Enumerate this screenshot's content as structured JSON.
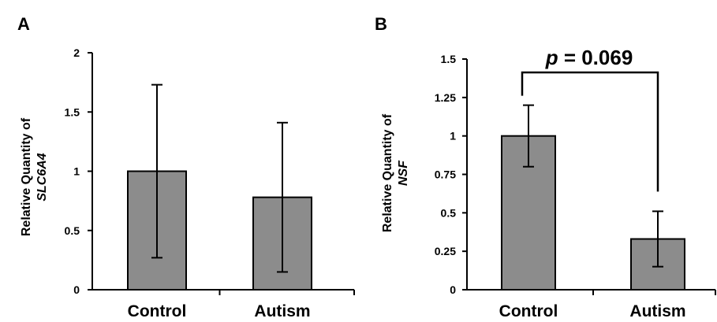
{
  "chart_data": [
    {
      "type": "bar",
      "panel_label": "A",
      "categories": [
        "Control",
        "Autism"
      ],
      "values": [
        1.0,
        0.78
      ],
      "errors": [
        0.73,
        0.63
      ],
      "ylabel_line1": "Relative Quantity of",
      "ylabel_line2": "SLC6A4",
      "ylim": [
        0,
        2
      ],
      "yticks": [
        0,
        0.5,
        1,
        1.5,
        2
      ],
      "ytick_labels": [
        "0",
        "0.5",
        "1",
        "1.5",
        "2"
      ],
      "bar_color": "#8c8c8c",
      "grid": false
    },
    {
      "type": "bar",
      "panel_label": "B",
      "categories": [
        "Control",
        "Autism"
      ],
      "values": [
        1.0,
        0.33
      ],
      "errors": [
        0.2,
        0.18
      ],
      "ylabel_line1": "Relative Quantity of",
      "ylabel_line2": "NSF",
      "ylim": [
        0,
        1.5
      ],
      "yticks": [
        0,
        0.25,
        0.5,
        0.75,
        1,
        1.25,
        1.5
      ],
      "ytick_labels": [
        "0",
        "0.25",
        "0.5",
        "0.75",
        "1",
        "1.25",
        "1.5"
      ],
      "annotation_p_label": "p",
      "annotation_value": " = 0.069",
      "bar_color": "#8c8c8c",
      "grid": false
    }
  ]
}
